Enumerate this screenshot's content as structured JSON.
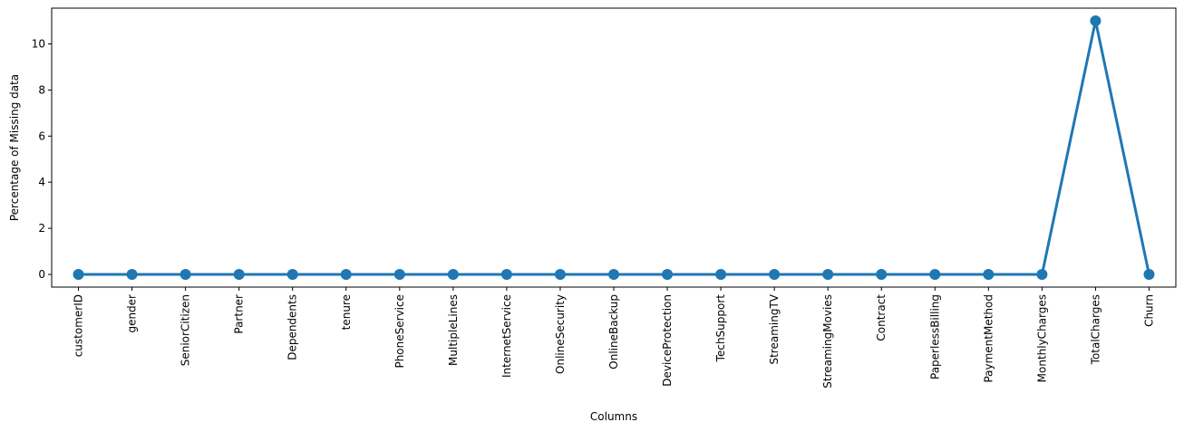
{
  "chart_data": {
    "type": "line",
    "title": "",
    "xlabel": "Columns",
    "ylabel": "Percentage of Missing data",
    "categories": [
      "customerID",
      "gender",
      "SeniorCitizen",
      "Partner",
      "Dependents",
      "tenure",
      "PhoneService",
      "MultipleLines",
      "InternetService",
      "OnlineSecurity",
      "OnlineBackup",
      "DeviceProtection",
      "TechSupport",
      "StreamingTV",
      "StreamingMovies",
      "Contract",
      "PaperlessBilling",
      "PaymentMethod",
      "MonthlyCharges",
      "TotalCharges",
      "Churn"
    ],
    "values": [
      0,
      0,
      0,
      0,
      0,
      0,
      0,
      0,
      0,
      0,
      0,
      0,
      0,
      0,
      0,
      0,
      0,
      0,
      0,
      11,
      0
    ],
    "ylim": [
      -0.55,
      11.55
    ],
    "yticks": [
      0,
      2,
      4,
      6,
      8,
      10
    ],
    "grid": false,
    "legend": "none",
    "color": "#1f77b4"
  }
}
